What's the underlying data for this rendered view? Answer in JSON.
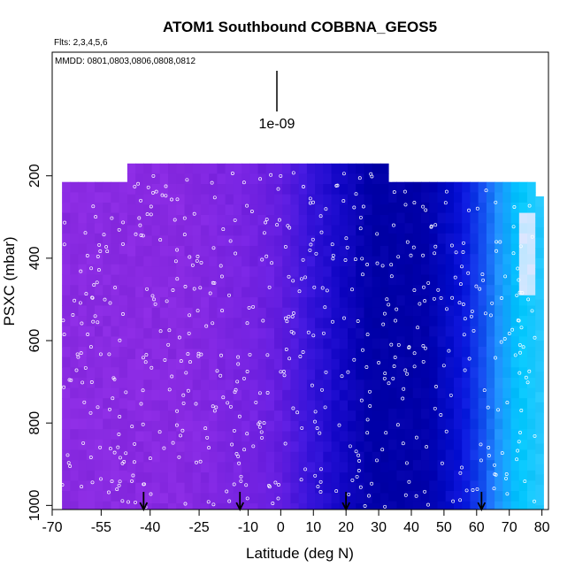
{
  "chart_data": {
    "type": "heatmap",
    "title": "ATOM1 Southbound COBBNA_GEOS5",
    "flights_note": "Flts: 2,3,4,5,6",
    "dates_note": "MMDD: 0801,0803,0806,0808,0812",
    "scale_label": "1e-09",
    "xlabel": "Latitude (deg N)",
    "ylabel": "PSXC (mbar)",
    "xlim": [
      -70,
      82
    ],
    "ylim": [
      1010,
      -100
    ],
    "xticks": [
      "-70",
      "-55",
      "-40",
      "-25",
      "-10",
      "0",
      "10",
      "20",
      "30",
      "40",
      "50",
      "60",
      "70",
      "80"
    ],
    "xtick_values": [
      -70,
      -55,
      -40,
      -25,
      -10,
      0,
      10,
      20,
      30,
      40,
      50,
      60,
      70,
      80
    ],
    "yticks": [
      "200",
      "400",
      "600",
      "800",
      "1000"
    ],
    "ytick_values": [
      200,
      400,
      600,
      800,
      1000
    ],
    "colors": {
      "purple": "#8a2be2",
      "violet": "#6a20e0",
      "blue": "#1a10d8",
      "navy": "#00009e",
      "azure": "#1e90ff",
      "cyan": "#00bfff",
      "pale": "#cfeeff"
    },
    "color_bands": [
      {
        "from": -70,
        "to": -30,
        "color": "#8a2be2"
      },
      {
        "from": -30,
        "to": -10,
        "color": "#7a27e2"
      },
      {
        "from": -10,
        "to": 0,
        "color": "#6620e0"
      },
      {
        "from": 0,
        "to": 10,
        "color": "#3a18dc"
      },
      {
        "from": 10,
        "to": 25,
        "color": "#1408c8"
      },
      {
        "from": 25,
        "to": 45,
        "color": "#0000a8"
      },
      {
        "from": 45,
        "to": 60,
        "color": "#0a10d8"
      },
      {
        "from": 60,
        "to": 66,
        "color": "#1060f0"
      },
      {
        "from": 66,
        "to": 72,
        "color": "#1c9cff"
      },
      {
        "from": 72,
        "to": 80,
        "color": "#00c8ff"
      }
    ],
    "domain_segments": [
      {
        "lat_from": -67,
        "lat_to": -46,
        "p_top": 215
      },
      {
        "lat_from": -46,
        "lat_to": 34,
        "p_top": 170
      },
      {
        "lat_from": 34,
        "lat_to": 77,
        "p_top": 215
      },
      {
        "lat_from": 77,
        "lat_to": 79.5,
        "p_top": 250
      },
      {
        "lat_from": 79.5,
        "lat_to": 80,
        "p_top": 360
      }
    ],
    "arrows_lat": [
      -42,
      -12.5,
      20,
      61.5
    ]
  }
}
